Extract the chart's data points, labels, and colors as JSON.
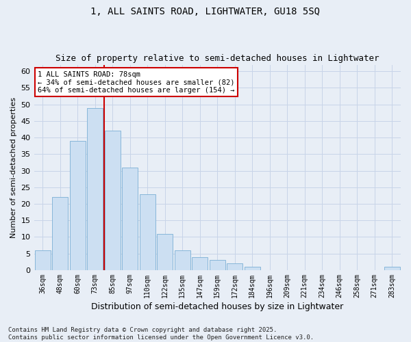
{
  "title": "1, ALL SAINTS ROAD, LIGHTWATER, GU18 5SQ",
  "subtitle": "Size of property relative to semi-detached houses in Lightwater",
  "xlabel": "Distribution of semi-detached houses by size in Lightwater",
  "ylabel": "Number of semi-detached properties",
  "categories": [
    "36sqm",
    "48sqm",
    "60sqm",
    "73sqm",
    "85sqm",
    "97sqm",
    "110sqm",
    "122sqm",
    "135sqm",
    "147sqm",
    "159sqm",
    "172sqm",
    "184sqm",
    "196sqm",
    "209sqm",
    "221sqm",
    "234sqm",
    "246sqm",
    "258sqm",
    "271sqm",
    "283sqm"
  ],
  "values": [
    6,
    22,
    39,
    49,
    42,
    31,
    23,
    11,
    6,
    4,
    3,
    2,
    1,
    0,
    0,
    0,
    0,
    0,
    0,
    0,
    1
  ],
  "bar_color": "#ccdff2",
  "bar_edge_color": "#7aafd4",
  "grid_color": "#c8d4e8",
  "bg_color": "#e8eef6",
  "property_bin_index": 3,
  "annotation_text": "1 ALL SAINTS ROAD: 78sqm\n← 34% of semi-detached houses are smaller (82)\n64% of semi-detached houses are larger (154) →",
  "annotation_box_color": "#ffffff",
  "annotation_box_edge_color": "#cc0000",
  "vline_color": "#cc0000",
  "footnote": "Contains HM Land Registry data © Crown copyright and database right 2025.\nContains public sector information licensed under the Open Government Licence v3.0.",
  "ylim": [
    0,
    62
  ],
  "yticks": [
    0,
    5,
    10,
    15,
    20,
    25,
    30,
    35,
    40,
    45,
    50,
    55,
    60
  ],
  "title_fontsize": 10,
  "subtitle_fontsize": 9,
  "footnote_fontsize": 6.5,
  "ylabel_fontsize": 8,
  "xlabel_fontsize": 9
}
